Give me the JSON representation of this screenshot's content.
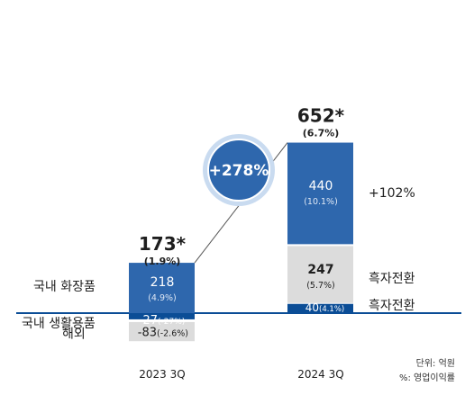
{
  "chart_data": {
    "type": "bar",
    "stacked": true,
    "categories": [
      "2023 3Q",
      "2024 3Q"
    ],
    "totals": [
      {
        "value": "173*",
        "margin": "(1.9%)"
      },
      {
        "value": "652*",
        "margin": "(6.7%)"
      }
    ],
    "growth_badge": "+278%",
    "series": [
      {
        "name": "국내 화장품",
        "values": [
          218,
          440
        ],
        "labels": [
          "218",
          "440"
        ],
        "margins": [
          "(4.9%)",
          "(10.1%)"
        ],
        "color": "#2E67AD",
        "right_note": "+102%"
      },
      {
        "name": "국내 생활용품",
        "values": [
          -27,
          40
        ],
        "labels": [
          "-27",
          "40"
        ],
        "margins": [
          "(-27%)",
          "(4.1%)"
        ],
        "color": "#0B4D96",
        "right_note": "흑자전환"
      },
      {
        "name": "해외",
        "values": [
          -83,
          247
        ],
        "labels": [
          "-83",
          "247"
        ],
        "margins": [
          "(-2.6%)",
          "(5.7%)"
        ],
        "color": "#DCDCDC",
        "right_note": "흑자전환"
      }
    ],
    "legend_left": [
      "국내 화장품",
      "국내 생활용품",
      "해외"
    ],
    "unit_note": "단위: 억원",
    "pct_note": "%: 영업이익률",
    "colors": {
      "accent": "#2E67AD",
      "dark": "#0B4D96",
      "gray": "#DCDCDC",
      "text": "#1E1E1E",
      "note": "#333333"
    }
  }
}
